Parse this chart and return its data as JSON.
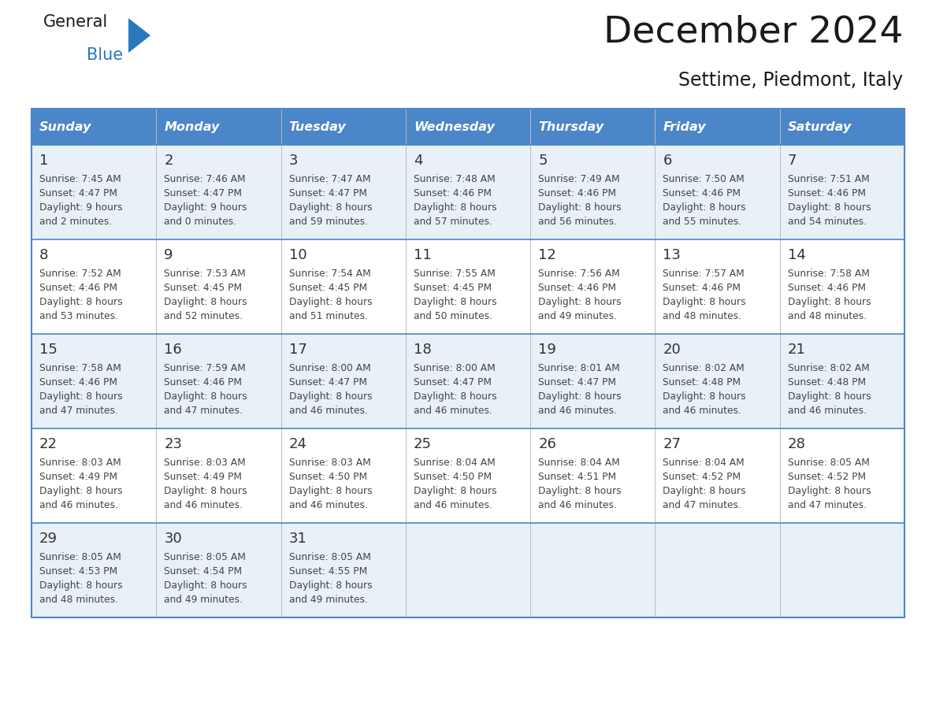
{
  "title": "December 2024",
  "subtitle": "Settime, Piedmont, Italy",
  "header_bg": "#4a86c8",
  "header_text": "#ffffff",
  "header_days": [
    "Sunday",
    "Monday",
    "Tuesday",
    "Wednesday",
    "Thursday",
    "Friday",
    "Saturday"
  ],
  "row_bg_light": "#e8f0f8",
  "row_bg_white": "#ffffff",
  "cell_border_color": "#4a86c8",
  "thin_border_color": "#aaaaaa",
  "day_number_color": "#333333",
  "cell_text_color": "#444444",
  "logo_general_color": "#1a1a1a",
  "logo_blue_color": "#2878c0",
  "title_color": "#1a1a1a",
  "weeks": [
    [
      {
        "day": 1,
        "sunrise": "7:45 AM",
        "sunset": "4:47 PM",
        "daylight_h": "9 hours",
        "daylight_m": "and 2 minutes."
      },
      {
        "day": 2,
        "sunrise": "7:46 AM",
        "sunset": "4:47 PM",
        "daylight_h": "9 hours",
        "daylight_m": "and 0 minutes."
      },
      {
        "day": 3,
        "sunrise": "7:47 AM",
        "sunset": "4:47 PM",
        "daylight_h": "8 hours",
        "daylight_m": "and 59 minutes."
      },
      {
        "day": 4,
        "sunrise": "7:48 AM",
        "sunset": "4:46 PM",
        "daylight_h": "8 hours",
        "daylight_m": "and 57 minutes."
      },
      {
        "day": 5,
        "sunrise": "7:49 AM",
        "sunset": "4:46 PM",
        "daylight_h": "8 hours",
        "daylight_m": "and 56 minutes."
      },
      {
        "day": 6,
        "sunrise": "7:50 AM",
        "sunset": "4:46 PM",
        "daylight_h": "8 hours",
        "daylight_m": "and 55 minutes."
      },
      {
        "day": 7,
        "sunrise": "7:51 AM",
        "sunset": "4:46 PM",
        "daylight_h": "8 hours",
        "daylight_m": "and 54 minutes."
      }
    ],
    [
      {
        "day": 8,
        "sunrise": "7:52 AM",
        "sunset": "4:46 PM",
        "daylight_h": "8 hours",
        "daylight_m": "and 53 minutes."
      },
      {
        "day": 9,
        "sunrise": "7:53 AM",
        "sunset": "4:45 PM",
        "daylight_h": "8 hours",
        "daylight_m": "and 52 minutes."
      },
      {
        "day": 10,
        "sunrise": "7:54 AM",
        "sunset": "4:45 PM",
        "daylight_h": "8 hours",
        "daylight_m": "and 51 minutes."
      },
      {
        "day": 11,
        "sunrise": "7:55 AM",
        "sunset": "4:45 PM",
        "daylight_h": "8 hours",
        "daylight_m": "and 50 minutes."
      },
      {
        "day": 12,
        "sunrise": "7:56 AM",
        "sunset": "4:46 PM",
        "daylight_h": "8 hours",
        "daylight_m": "and 49 minutes."
      },
      {
        "day": 13,
        "sunrise": "7:57 AM",
        "sunset": "4:46 PM",
        "daylight_h": "8 hours",
        "daylight_m": "and 48 minutes."
      },
      {
        "day": 14,
        "sunrise": "7:58 AM",
        "sunset": "4:46 PM",
        "daylight_h": "8 hours",
        "daylight_m": "and 48 minutes."
      }
    ],
    [
      {
        "day": 15,
        "sunrise": "7:58 AM",
        "sunset": "4:46 PM",
        "daylight_h": "8 hours",
        "daylight_m": "and 47 minutes."
      },
      {
        "day": 16,
        "sunrise": "7:59 AM",
        "sunset": "4:46 PM",
        "daylight_h": "8 hours",
        "daylight_m": "and 47 minutes."
      },
      {
        "day": 17,
        "sunrise": "8:00 AM",
        "sunset": "4:47 PM",
        "daylight_h": "8 hours",
        "daylight_m": "and 46 minutes."
      },
      {
        "day": 18,
        "sunrise": "8:00 AM",
        "sunset": "4:47 PM",
        "daylight_h": "8 hours",
        "daylight_m": "and 46 minutes."
      },
      {
        "day": 19,
        "sunrise": "8:01 AM",
        "sunset": "4:47 PM",
        "daylight_h": "8 hours",
        "daylight_m": "and 46 minutes."
      },
      {
        "day": 20,
        "sunrise": "8:02 AM",
        "sunset": "4:48 PM",
        "daylight_h": "8 hours",
        "daylight_m": "and 46 minutes."
      },
      {
        "day": 21,
        "sunrise": "8:02 AM",
        "sunset": "4:48 PM",
        "daylight_h": "8 hours",
        "daylight_m": "and 46 minutes."
      }
    ],
    [
      {
        "day": 22,
        "sunrise": "8:03 AM",
        "sunset": "4:49 PM",
        "daylight_h": "8 hours",
        "daylight_m": "and 46 minutes."
      },
      {
        "day": 23,
        "sunrise": "8:03 AM",
        "sunset": "4:49 PM",
        "daylight_h": "8 hours",
        "daylight_m": "and 46 minutes."
      },
      {
        "day": 24,
        "sunrise": "8:03 AM",
        "sunset": "4:50 PM",
        "daylight_h": "8 hours",
        "daylight_m": "and 46 minutes."
      },
      {
        "day": 25,
        "sunrise": "8:04 AM",
        "sunset": "4:50 PM",
        "daylight_h": "8 hours",
        "daylight_m": "and 46 minutes."
      },
      {
        "day": 26,
        "sunrise": "8:04 AM",
        "sunset": "4:51 PM",
        "daylight_h": "8 hours",
        "daylight_m": "and 46 minutes."
      },
      {
        "day": 27,
        "sunrise": "8:04 AM",
        "sunset": "4:52 PM",
        "daylight_h": "8 hours",
        "daylight_m": "and 47 minutes."
      },
      {
        "day": 28,
        "sunrise": "8:05 AM",
        "sunset": "4:52 PM",
        "daylight_h": "8 hours",
        "daylight_m": "and 47 minutes."
      }
    ],
    [
      {
        "day": 29,
        "sunrise": "8:05 AM",
        "sunset": "4:53 PM",
        "daylight_h": "8 hours",
        "daylight_m": "and 48 minutes."
      },
      {
        "day": 30,
        "sunrise": "8:05 AM",
        "sunset": "4:54 PM",
        "daylight_h": "8 hours",
        "daylight_m": "and 49 minutes."
      },
      {
        "day": 31,
        "sunrise": "8:05 AM",
        "sunset": "4:55 PM",
        "daylight_h": "8 hours",
        "daylight_m": "and 49 minutes."
      },
      null,
      null,
      null,
      null
    ]
  ]
}
